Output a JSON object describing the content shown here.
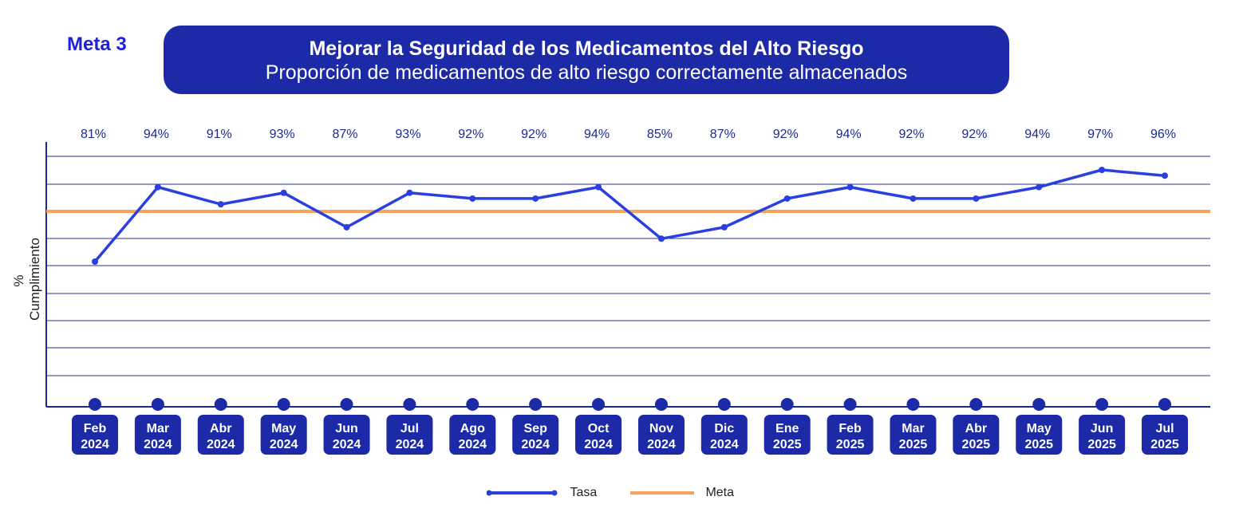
{
  "meta_label": "Meta 3",
  "title": "Mejorar la Seguridad de los Medicamentos del Alto Riesgo",
  "subtitle": "Proporción de medicamentos de alto riesgo correctamente almacenados",
  "colors": {
    "title_bg": "#1c2aa8",
    "line": "#2a3fe0",
    "goal": "#f7a35c",
    "month_box": "#1c2aa8"
  },
  "chart_data": {
    "type": "line",
    "title": "Mejorar la Seguridad de los Medicamentos del Alto Riesgo",
    "subtitle": "Proporción de medicamentos de alto riesgo correctamente almacenados",
    "ylabel": "% Cumplimiento",
    "xlabel": "",
    "ylim": [
      40,
      108
    ],
    "grid": true,
    "legend_position": "bottom-center",
    "categories": [
      [
        "Feb",
        "2024"
      ],
      [
        "Mar",
        "2024"
      ],
      [
        "Abr",
        "2024"
      ],
      [
        "May",
        "2024"
      ],
      [
        "Jun",
        "2024"
      ],
      [
        "Jul",
        "2024"
      ],
      [
        "Ago",
        "2024"
      ],
      [
        "Sep",
        "2024"
      ],
      [
        "Oct",
        "2024"
      ],
      [
        "Nov",
        "2024"
      ],
      [
        "Dic",
        "2024"
      ],
      [
        "Ene",
        "2025"
      ],
      [
        "Feb",
        "2025"
      ],
      [
        "Mar",
        "2025"
      ],
      [
        "Abr",
        "2025"
      ],
      [
        "May",
        "2025"
      ],
      [
        "Jun",
        "2025"
      ],
      [
        "Jul",
        "2025"
      ]
    ],
    "series": [
      {
        "name": "Tasa",
        "values": [
          81,
          94,
          91,
          93,
          87,
          93,
          92,
          92,
          94,
          85,
          87,
          92,
          94,
          92,
          92,
          94,
          97,
          96
        ],
        "labels": [
          "81%",
          "94%",
          "91%",
          "93%",
          "87%",
          "93%",
          "92%",
          "92%",
          "94%",
          "85%",
          "87%",
          "92%",
          "94%",
          "92%",
          "92%",
          "94%",
          "97%",
          "96%"
        ]
      }
    ],
    "goal": {
      "name": "Meta",
      "value": 90
    }
  }
}
